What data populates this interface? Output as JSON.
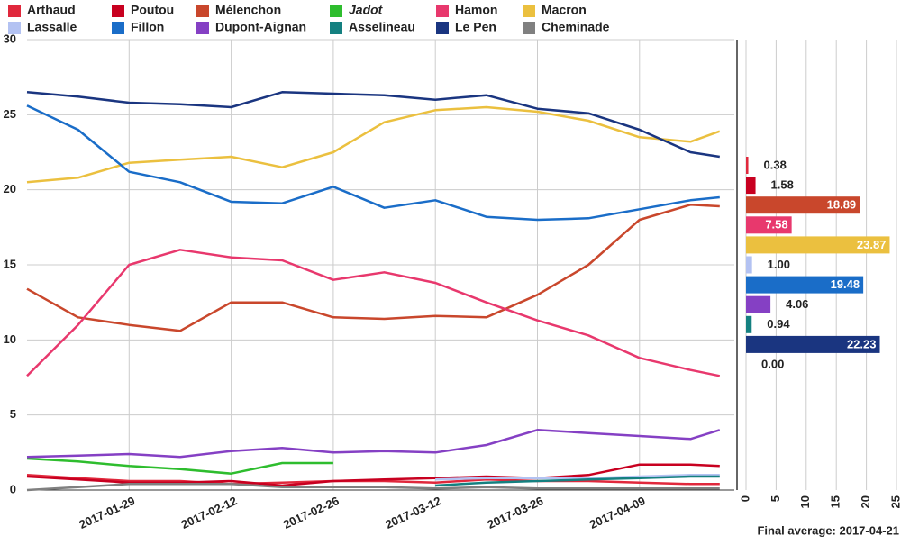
{
  "chart_data": [
    {
      "type": "line",
      "x": [
        "2017-01-15",
        "2017-01-22",
        "2017-01-29",
        "2017-02-05",
        "2017-02-12",
        "2017-02-19",
        "2017-02-26",
        "2017-03-05",
        "2017-03-12",
        "2017-03-19",
        "2017-03-26",
        "2017-04-02",
        "2017-04-09",
        "2017-04-16",
        "2017-04-20"
      ],
      "xlim": [
        "2017-01-15",
        "2017-04-22"
      ],
      "xticks": [
        "2017-01-29",
        "2017-02-12",
        "2017-02-26",
        "2017-03-12",
        "2017-03-26",
        "2017-04-09"
      ],
      "ylim": [
        0,
        30
      ],
      "yticks": [
        0,
        5,
        10,
        15,
        20,
        25,
        30
      ],
      "grid": true,
      "series": [
        {
          "name": "Arthaud",
          "color": "#e0283c",
          "values": [
            1.0,
            0.8,
            0.6,
            0.6,
            0.4,
            0.5,
            0.6,
            0.6,
            0.5,
            0.7,
            0.6,
            0.6,
            0.5,
            0.4,
            0.4
          ]
        },
        {
          "name": "Poutou",
          "color": "#c80020",
          "values": [
            0.9,
            0.7,
            0.5,
            0.5,
            0.6,
            0.3,
            0.6,
            0.7,
            0.8,
            0.9,
            0.8,
            1.0,
            1.7,
            1.7,
            1.6
          ]
        },
        {
          "name": "Mélenchon",
          "color": "#c9472c",
          "values": [
            13.4,
            11.5,
            11.0,
            10.6,
            12.5,
            12.5,
            11.5,
            11.4,
            11.6,
            11.5,
            13.0,
            15.0,
            18.0,
            19.0,
            18.9
          ]
        },
        {
          "name": "Jadot",
          "color": "#2ebd2e",
          "italic": true,
          "values": [
            2.1,
            1.9,
            1.6,
            1.4,
            1.1,
            1.8,
            1.8,
            null,
            null,
            null,
            null,
            null,
            null,
            null,
            null
          ]
        },
        {
          "name": "Hamon",
          "color": "#e8386d",
          "values": [
            7.6,
            11.0,
            15.0,
            16.0,
            15.5,
            15.3,
            14.0,
            14.5,
            13.8,
            12.5,
            11.3,
            10.3,
            8.8,
            8.0,
            7.6
          ]
        },
        {
          "name": "Macron",
          "color": "#ebc03f",
          "values": [
            20.5,
            20.8,
            21.8,
            22.0,
            22.2,
            21.5,
            22.5,
            24.5,
            25.3,
            25.5,
            25.2,
            24.6,
            23.5,
            23.2,
            23.9
          ]
        },
        {
          "name": "Lassalle",
          "color": "#b3c2f2",
          "values": [
            null,
            null,
            null,
            null,
            null,
            null,
            null,
            null,
            0.7,
            0.8,
            0.8,
            0.8,
            0.9,
            1.0,
            1.0
          ]
        },
        {
          "name": "Fillon",
          "color": "#1a6dc8",
          "values": [
            25.6,
            24.0,
            21.2,
            20.5,
            19.2,
            19.1,
            20.2,
            18.8,
            19.3,
            18.2,
            18.0,
            18.1,
            18.7,
            19.3,
            19.5
          ]
        },
        {
          "name": "Dupont-Aignan",
          "color": "#8540c4",
          "values": [
            2.2,
            2.3,
            2.4,
            2.2,
            2.6,
            2.8,
            2.5,
            2.6,
            2.5,
            3.0,
            4.0,
            3.8,
            3.6,
            3.4,
            4.0
          ]
        },
        {
          "name": "Asselineau",
          "color": "#148080",
          "values": [
            null,
            null,
            null,
            null,
            null,
            null,
            null,
            null,
            0.3,
            0.5,
            0.6,
            0.7,
            0.8,
            0.9,
            0.9
          ]
        },
        {
          "name": "Le Pen",
          "color": "#1a3580",
          "values": [
            26.5,
            26.2,
            25.8,
            25.7,
            25.5,
            26.5,
            26.4,
            26.3,
            26.0,
            26.3,
            25.4,
            25.1,
            24.0,
            22.5,
            22.2
          ]
        },
        {
          "name": "Cheminade",
          "color": "#808080",
          "values": [
            0.0,
            0.2,
            0.4,
            0.4,
            0.4,
            0.2,
            0.2,
            0.2,
            0.1,
            0.2,
            0.1,
            0.1,
            0.1,
            0.1,
            0.1
          ]
        }
      ]
    },
    {
      "type": "hbar",
      "title": "Final average: 2017-04-21",
      "values": [
        0.38,
        1.58,
        18.89,
        7.58,
        23.87,
        1.0,
        19.48,
        4.06,
        0.94,
        22.23,
        0.0
      ],
      "value_labels": [
        "0.38",
        "1.58",
        "18.89",
        "7.58",
        "23.87",
        "1.00",
        "19.48",
        "4.06",
        "0.94",
        "22.23",
        "0.00"
      ],
      "colors": [
        "#e0283c",
        "#c80020",
        "#c9472c",
        "#e8386d",
        "#ebc03f",
        "#b3c2f2",
        "#1a6dc8",
        "#8540c4",
        "#148080",
        "#1a3580",
        "#808080"
      ],
      "xlim": [
        0,
        25
      ],
      "xticks": [
        0,
        5,
        10,
        15,
        20,
        25
      ]
    }
  ]
}
